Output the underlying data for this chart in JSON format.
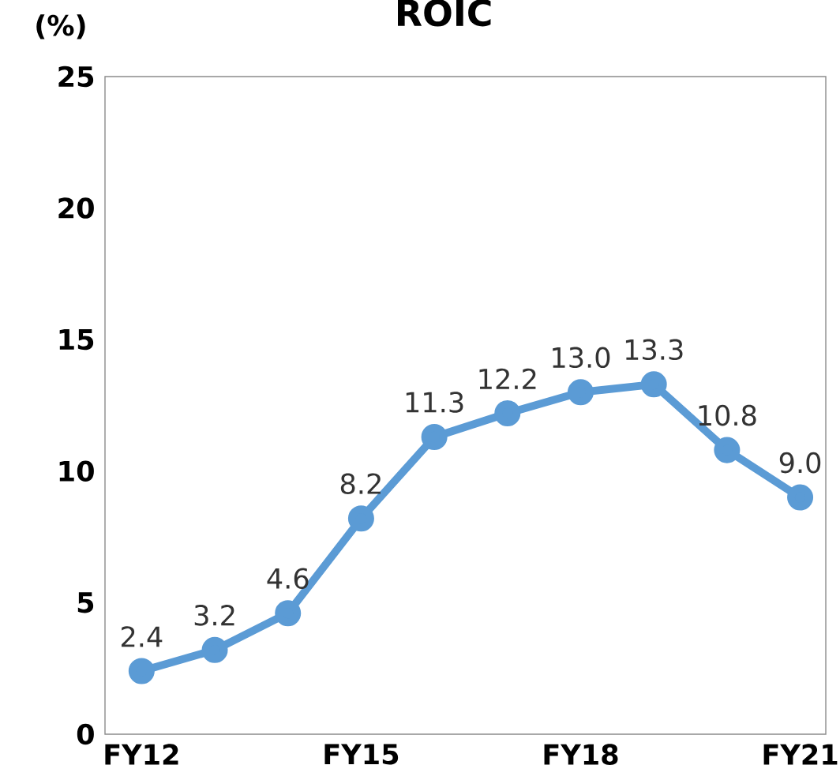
{
  "chart_data": {
    "type": "line",
    "title": "ROIC",
    "ylabel": "(%)",
    "categories": [
      "FY12",
      null,
      null,
      "FY15",
      null,
      null,
      "FY18",
      null,
      null,
      "FY21"
    ],
    "values": [
      2.4,
      3.2,
      4.6,
      8.2,
      11.3,
      12.2,
      13.0,
      13.3,
      10.8,
      9.0
    ],
    "value_labels": [
      "2.4",
      "3.2",
      "4.6",
      "8.2",
      "11.3",
      "12.2",
      "13.0",
      "13.3",
      "10.8",
      "9.0"
    ],
    "color": "#5b9bd5",
    "marker": "circle",
    "line_style": "solid",
    "grid": false,
    "ylim": [
      0,
      25
    ],
    "yticks": [
      0,
      5,
      10,
      15,
      20,
      25
    ]
  }
}
